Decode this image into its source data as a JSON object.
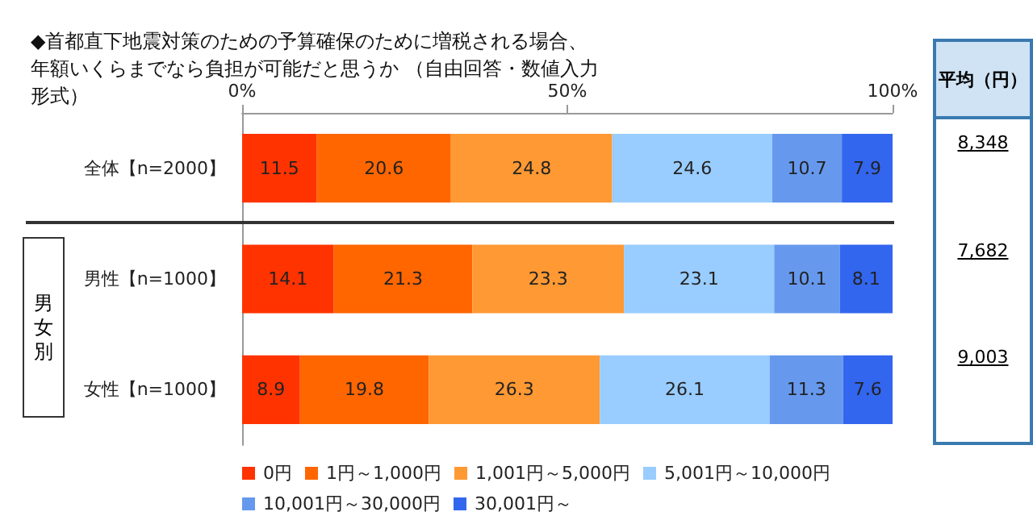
{
  "chart_data": {
    "type": "bar",
    "orientation": "horizontal",
    "stacked": true,
    "title": "◆首都直下地震対策のための予算確保のために増税される場合、年額いくらまでなら負担が可能だと思うか （自由回答・数値入力形式）",
    "categories": [
      "全体【n=2000】",
      "男性【n=1000】",
      "女性【n=1000】"
    ],
    "series": [
      {
        "name": "0円",
        "color": "#ff3300",
        "values": [
          11.5,
          14.1,
          8.9
        ]
      },
      {
        "name": "1円～1,000円",
        "color": "#ff6600",
        "values": [
          20.6,
          21.3,
          19.8
        ]
      },
      {
        "name": "1,001円～5,000円",
        "color": "#ff9933",
        "values": [
          24.8,
          23.3,
          26.3
        ]
      },
      {
        "name": "5,001円～10,000円",
        "color": "#99ccff",
        "values": [
          24.6,
          23.1,
          26.1
        ]
      },
      {
        "name": "10,001円～30,000円",
        "color": "#6699ee",
        "values": [
          10.7,
          10.1,
          11.3
        ]
      },
      {
        "name": "30,001円～",
        "color": "#3366ee",
        "values": [
          7.9,
          8.1,
          7.6
        ]
      }
    ],
    "xlim": [
      0,
      100
    ],
    "xticks": [
      {
        "value": 0,
        "label": "0%"
      },
      {
        "value": 50,
        "label": "50%"
      },
      {
        "value": 100,
        "label": "100%"
      }
    ],
    "grid": false,
    "legend": "bottom",
    "data_labels": true,
    "annotations": [
      "男女別",
      "平均（円）",
      "8,348",
      "7,682",
      "9,003"
    ]
  }
}
